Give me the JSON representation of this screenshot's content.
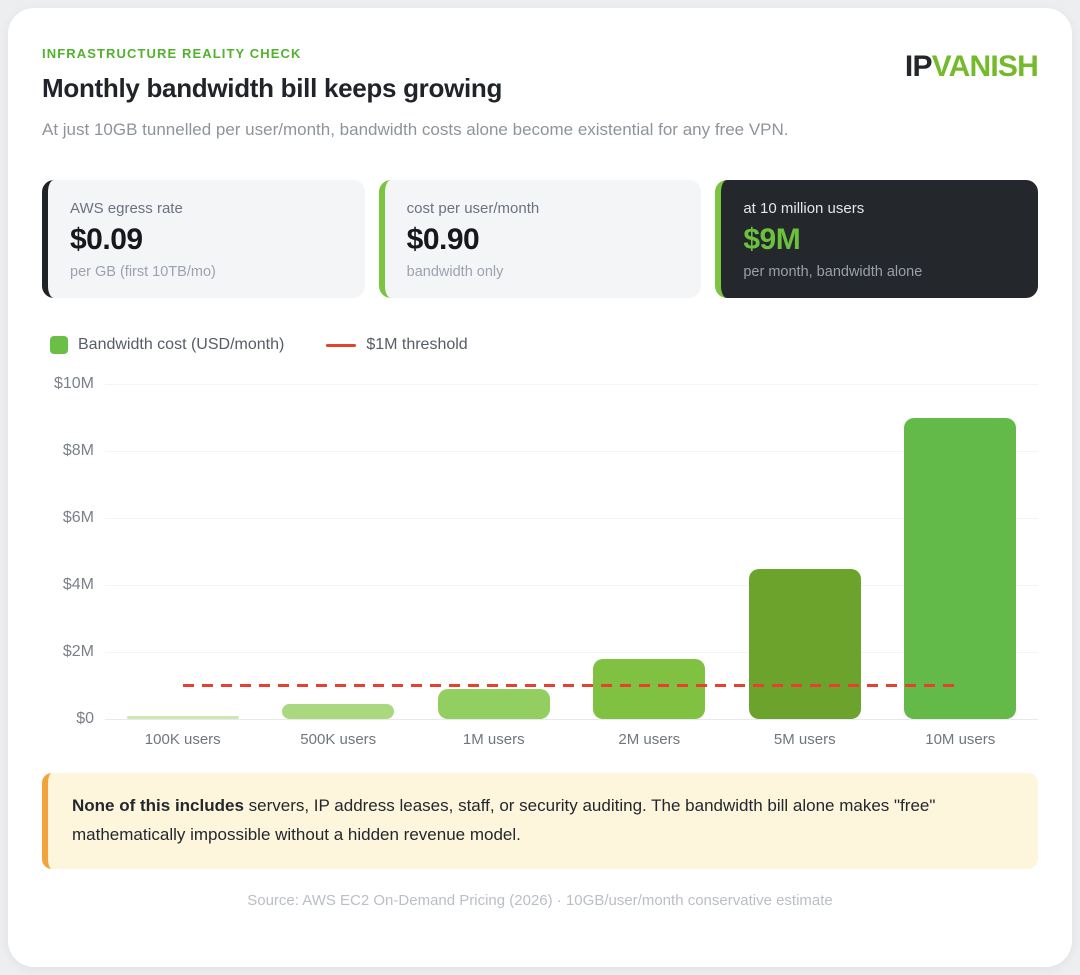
{
  "page": {
    "eyebrow": "INFRASTRUCTURE REALITY CHECK",
    "title": "Monthly bandwidth bill keeps growing",
    "subtitle": "At just 10GB tunnelled per user/month, bandwidth costs alone become existential for any free VPN.",
    "logo": {
      "part1": "IP",
      "part2": "VANISH"
    },
    "source": "Source: AWS EC2 On-Demand Pricing (2026) · 10GB/user/month conservative estimate"
  },
  "colors": {
    "eyebrow_green": "#50b22d",
    "logo_green": "#74ba2b",
    "logo_dark": "#23262b",
    "value_green": "#6cc13c",
    "threshold_red": "#e8402e",
    "legend_green": "#6abf47",
    "note_bg": "#fdf5dc",
    "note_border": "#f2a33c",
    "dark_card_bg": "#24272c",
    "card_bg": "#f4f5f7"
  },
  "stats": [
    {
      "label": "AWS egress rate",
      "value": "$0.09",
      "sub": "per GB (first 10TB/mo)",
      "accent": "#1f2328",
      "theme": "light"
    },
    {
      "label": "cost per user/month",
      "value": "$0.90",
      "sub": "bandwidth only",
      "accent": "#7dc342",
      "theme": "light"
    },
    {
      "label": "at 10 million users",
      "value": "$9M",
      "sub": "per month, bandwidth alone",
      "accent": "#7dc342",
      "theme": "dark"
    }
  ],
  "legend": {
    "series_label": "Bandwidth cost (USD/month)",
    "threshold_label": "$1M threshold"
  },
  "note": {
    "bold": "None of this includes",
    "rest": " servers, IP address leases, staff, or security auditing. The bandwidth bill alone makes \"free\" mathematically impossible without a hidden revenue model."
  },
  "chart_data": {
    "type": "bar",
    "title": "Monthly bandwidth bill keeps growing",
    "series_name": "Bandwidth cost (USD/month)",
    "categories": [
      "100K users",
      "500K users",
      "1M users",
      "2M users",
      "5M users",
      "10M users"
    ],
    "values": [
      0.09,
      0.45,
      0.9,
      1.8,
      4.5,
      9.0
    ],
    "values_unit": "USD millions per month",
    "bar_colors": [
      "#cde9b2",
      "#a9d87e",
      "#93ce60",
      "#80c142",
      "#6ba32d",
      "#64ba48"
    ],
    "threshold": {
      "value": 1,
      "label": "$1M threshold",
      "color": "#e8402e"
    },
    "xlabel": "",
    "ylabel": "",
    "ylim": [
      0,
      10
    ],
    "yticks": [
      0,
      2,
      4,
      6,
      8,
      10
    ],
    "ytick_labels": [
      "$0",
      "$2M",
      "$4M",
      "$6M",
      "$8M",
      "$10M"
    ],
    "grid": true,
    "legend_position": "top-left"
  }
}
